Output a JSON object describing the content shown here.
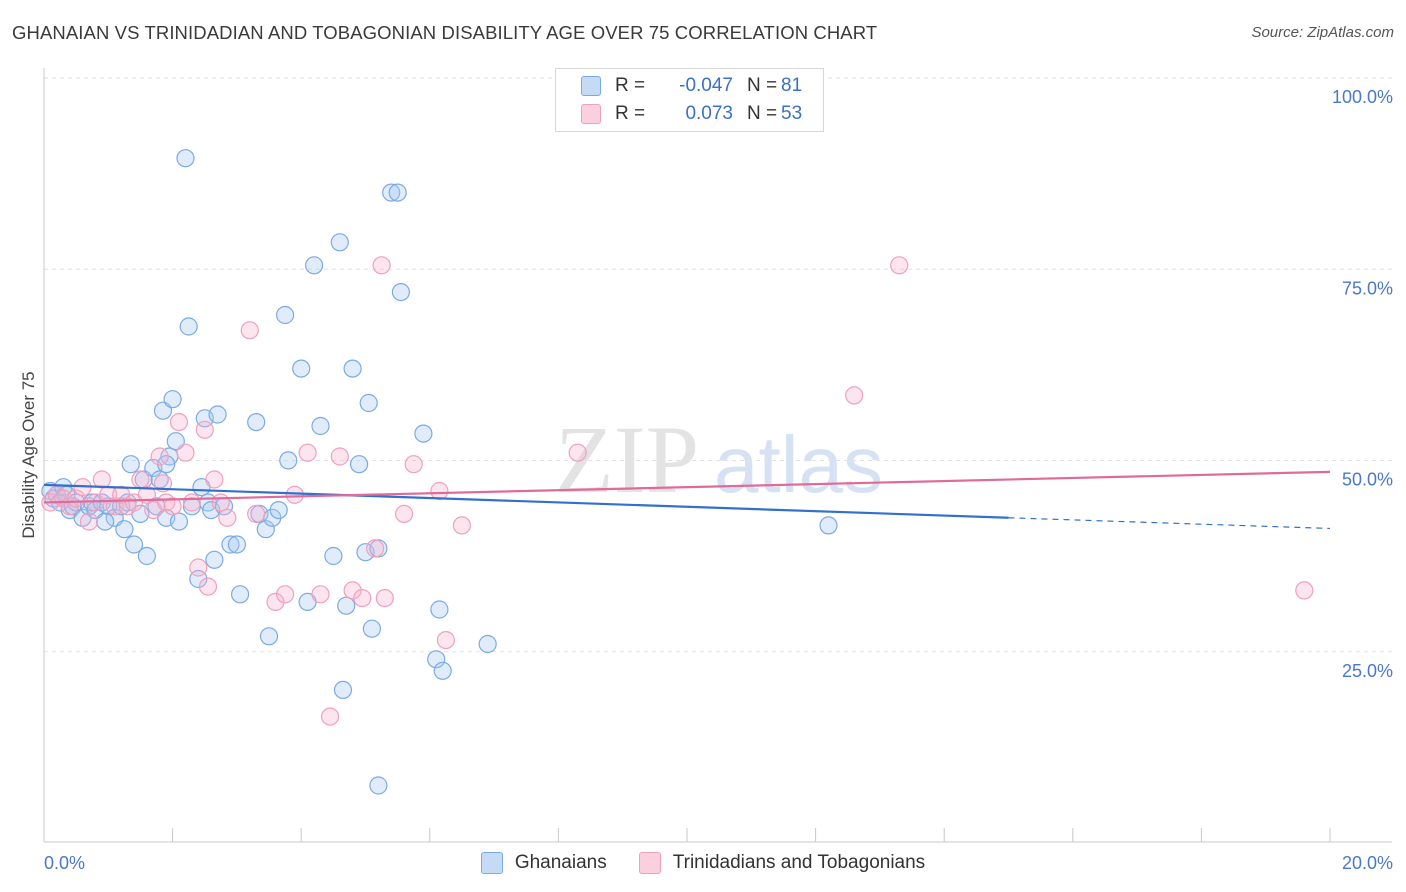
{
  "header": {
    "title": "GHANAIAN VS TRINIDADIAN AND TOBAGONIAN DISABILITY AGE OVER 75 CORRELATION CHART",
    "source": "Source: ZipAtlas.com"
  },
  "watermark": {
    "zip": "ZIP",
    "atlas": "atlas"
  },
  "legend": {
    "rows": [
      {
        "key": "R =",
        "r": "-0.047",
        "n_label": "N =",
        "n": "81",
        "color": "#7aaae6"
      },
      {
        "key": "R =",
        "r": "0.073",
        "n_label": "N =",
        "n": "53",
        "color": "#f0a0bc"
      }
    ]
  },
  "bottom_legend": {
    "items": [
      {
        "label": "Ghanaians",
        "color": "#7aaae6"
      },
      {
        "label": "Trinidadians and Tobagonians",
        "color": "#f0a0bc"
      }
    ]
  },
  "chart_data": {
    "type": "scatter",
    "title": "GHANAIAN VS TRINIDADIAN AND TOBAGONIAN DISABILITY AGE OVER 75 CORRELATION CHART",
    "xlabel": "",
    "ylabel": "Disability Age Over 75",
    "xlim": [
      0,
      20
    ],
    "ylim": [
      0,
      105
    ],
    "x_tick_labels": [
      "0.0%",
      "20.0%"
    ],
    "y_ticks": [
      {
        "value": 25,
        "label": "25.0%"
      },
      {
        "value": 50,
        "label": "50.0%"
      },
      {
        "value": 75,
        "label": "75.0%"
      },
      {
        "value": 100,
        "label": "100.0%"
      }
    ],
    "grid": "horizontal dashed",
    "legend_position": "top-center",
    "series": [
      {
        "name": "Ghanaians",
        "color": "#7aaae6",
        "line_color": "#3370cc",
        "trend": {
          "x0": 0,
          "y0": 49.3,
          "x1": 15,
          "y1": 45.0,
          "dash_to": 20,
          "dash_y": 43.6
        },
        "points": [
          [
            0.1,
            48.5
          ],
          [
            0.15,
            47.5
          ],
          [
            0.2,
            48
          ],
          [
            0.25,
            47
          ],
          [
            0.3,
            49
          ],
          [
            0.35,
            48
          ],
          [
            0.4,
            46
          ],
          [
            0.45,
            46.5
          ],
          [
            0.5,
            47
          ],
          [
            0.6,
            45
          ],
          [
            0.7,
            46.5
          ],
          [
            0.75,
            47
          ],
          [
            0.8,
            46
          ],
          [
            0.9,
            47
          ],
          [
            1.0,
            46.5
          ],
          [
            1.1,
            45
          ],
          [
            1.2,
            46.5
          ],
          [
            1.3,
            47
          ],
          [
            1.35,
            52
          ],
          [
            1.4,
            41.5
          ],
          [
            1.5,
            45.5
          ],
          [
            1.55,
            50
          ],
          [
            1.6,
            40
          ],
          [
            1.7,
            51.5
          ],
          [
            1.75,
            46.5
          ],
          [
            1.8,
            50
          ],
          [
            1.85,
            59
          ],
          [
            1.9,
            45
          ],
          [
            1.95,
            53
          ],
          [
            2.0,
            60.5
          ],
          [
            2.05,
            55
          ],
          [
            2.1,
            44.5
          ],
          [
            2.2,
            92
          ],
          [
            2.25,
            70
          ],
          [
            2.3,
            46.5
          ],
          [
            2.4,
            37
          ],
          [
            2.45,
            49
          ],
          [
            2.5,
            58
          ],
          [
            2.55,
            47
          ],
          [
            2.6,
            46
          ],
          [
            2.65,
            39.5
          ],
          [
            2.7,
            58.5
          ],
          [
            2.8,
            46.5
          ],
          [
            2.9,
            41.5
          ],
          [
            3.0,
            41.5
          ],
          [
            3.05,
            35
          ],
          [
            3.3,
            57.5
          ],
          [
            3.35,
            45.5
          ],
          [
            3.45,
            43.5
          ],
          [
            3.5,
            29.5
          ],
          [
            3.55,
            45
          ],
          [
            3.65,
            46
          ],
          [
            3.75,
            71.5
          ],
          [
            3.8,
            52.5
          ],
          [
            4.0,
            64.5
          ],
          [
            4.1,
            34
          ],
          [
            4.2,
            78
          ],
          [
            4.3,
            57
          ],
          [
            4.5,
            40
          ],
          [
            4.6,
            81
          ],
          [
            4.65,
            22.5
          ],
          [
            4.7,
            33.5
          ],
          [
            4.8,
            64.5
          ],
          [
            4.9,
            52
          ],
          [
            5.0,
            40.5
          ],
          [
            5.05,
            60
          ],
          [
            5.1,
            30.5
          ],
          [
            5.2,
            41
          ],
          [
            5.4,
            87.5
          ],
          [
            5.5,
            87.5
          ],
          [
            5.55,
            74.5
          ],
          [
            5.9,
            56
          ],
          [
            6.1,
            26.5
          ],
          [
            6.15,
            33
          ],
          [
            6.2,
            25
          ],
          [
            6.9,
            28.5
          ],
          [
            5.2,
            10
          ],
          [
            12.2,
            44
          ],
          [
            1.9,
            52
          ],
          [
            0.95,
            44.5
          ],
          [
            1.25,
            43.5
          ]
        ]
      },
      {
        "name": "Trinidadians and Tobagonians",
        "color": "#f0a0bc",
        "line_color": "#e06a98",
        "trend": {
          "x0": 0,
          "y0": 47.0,
          "x1": 20,
          "y1": 51.0
        },
        "points": [
          [
            0.1,
            47
          ],
          [
            0.2,
            48
          ],
          [
            0.3,
            47.5
          ],
          [
            0.4,
            46.5
          ],
          [
            0.5,
            47.5
          ],
          [
            0.6,
            49
          ],
          [
            0.7,
            44.5
          ],
          [
            0.8,
            47
          ],
          [
            0.9,
            50
          ],
          [
            1.0,
            48
          ],
          [
            1.1,
            46.5
          ],
          [
            1.2,
            48
          ],
          [
            1.3,
            46.5
          ],
          [
            1.4,
            47
          ],
          [
            1.5,
            50
          ],
          [
            1.6,
            48
          ],
          [
            1.7,
            46
          ],
          [
            1.8,
            53
          ],
          [
            1.85,
            49.5
          ],
          [
            1.9,
            47
          ],
          [
            2.0,
            46.5
          ],
          [
            2.1,
            57.5
          ],
          [
            2.2,
            53.5
          ],
          [
            2.3,
            47
          ],
          [
            2.4,
            38.5
          ],
          [
            2.5,
            56.5
          ],
          [
            2.55,
            36
          ],
          [
            2.65,
            50
          ],
          [
            2.75,
            47
          ],
          [
            2.85,
            45
          ],
          [
            3.2,
            69.5
          ],
          [
            3.3,
            45.5
          ],
          [
            3.6,
            34
          ],
          [
            3.75,
            35
          ],
          [
            3.9,
            48
          ],
          [
            4.1,
            53.5
          ],
          [
            4.3,
            35
          ],
          [
            4.45,
            19
          ],
          [
            4.6,
            53
          ],
          [
            4.8,
            35.5
          ],
          [
            4.95,
            34.5
          ],
          [
            5.15,
            41
          ],
          [
            5.25,
            78
          ],
          [
            5.6,
            45.5
          ],
          [
            5.75,
            52
          ],
          [
            6.15,
            48.5
          ],
          [
            6.25,
            29
          ],
          [
            6.5,
            44
          ],
          [
            8.3,
            53.5
          ],
          [
            12.6,
            61
          ],
          [
            13.3,
            78
          ],
          [
            19.6,
            35.5
          ],
          [
            5.3,
            34.5
          ]
        ]
      }
    ]
  }
}
